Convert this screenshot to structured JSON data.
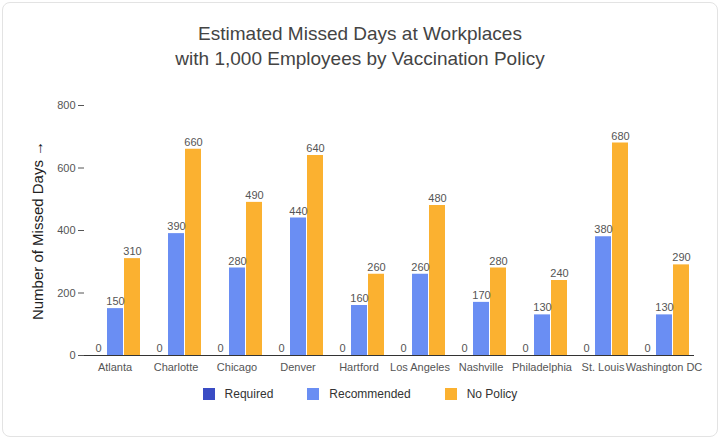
{
  "chart_data": {
    "type": "bar",
    "title": "Estimated Missed Days at Workplaces\nwith 1,000 Employees by Vaccination Policy",
    "y_label": "Number of Missed Days",
    "categories": [
      "Atlanta",
      "Charlotte",
      "Chicago",
      "Denver",
      "Hartford",
      "Los Angeles",
      "Nashville",
      "Philadelphia",
      "St. Louis",
      "Washington DC"
    ],
    "series": [
      {
        "name": "Required",
        "color": "#3a4cc4",
        "values": [
          0,
          0,
          0,
          0,
          0,
          0,
          0,
          0,
          0,
          0
        ]
      },
      {
        "name": "Recommended",
        "color": "#6a8ef3",
        "values": [
          150,
          390,
          280,
          440,
          160,
          260,
          170,
          130,
          380,
          130
        ]
      },
      {
        "name": "No Policy",
        "color": "#fbb130",
        "values": [
          310,
          660,
          490,
          640,
          260,
          480,
          280,
          240,
          680,
          290
        ]
      }
    ],
    "ylim": [
      0,
      800
    ],
    "yticks": [
      0,
      200,
      400,
      600,
      800
    ],
    "grid": false,
    "legend": "bottom",
    "data_labels": true
  }
}
